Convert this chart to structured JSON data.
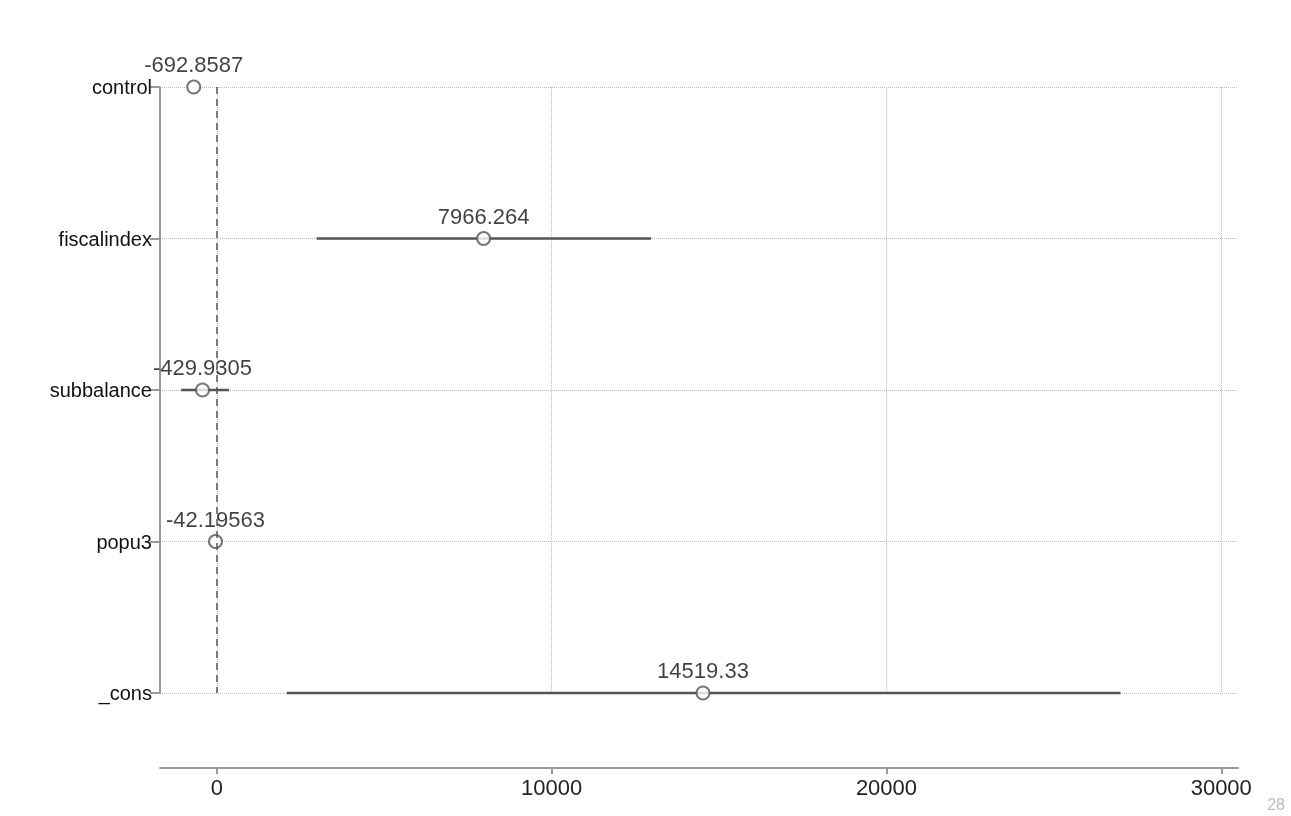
{
  "chart_data": {
    "type": "scatter",
    "orientation": "horizontal",
    "categories": [
      "control",
      "fiscalindex",
      "subbalance",
      "popu3",
      "_cons"
    ],
    "values": [
      -692.8587,
      7966.264,
      -429.9305,
      -42.19563,
      14519.33
    ],
    "errors": [
      null,
      [
        2980,
        12970
      ],
      [
        -1070,
        360
      ],
      null,
      [
        2090,
        26990
      ]
    ],
    "color": "#555555",
    "marker": "circle",
    "data_labels": true,
    "xlim": [
      -1700,
      30500
    ],
    "xticks": [
      0,
      10000,
      20000,
      30000
    ],
    "grid": true,
    "ref_lines": [
      {
        "axis": "x",
        "value": 0,
        "line_style": "dashed"
      }
    ],
    "annotations": [
      "28"
    ]
  }
}
